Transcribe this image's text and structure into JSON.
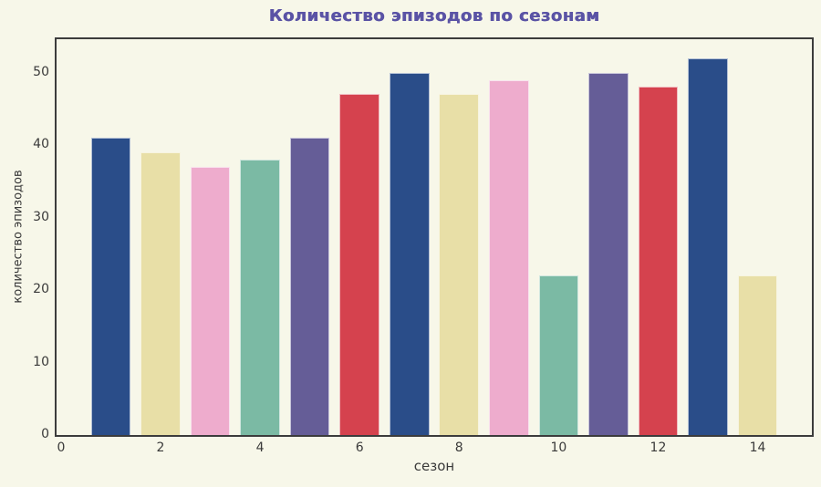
{
  "chart_data": {
    "type": "bar",
    "title": "Количество эпизодов по сезонам",
    "xlabel": "сезон",
    "ylabel": "количество эпизодов",
    "categories": [
      1,
      2,
      3,
      4,
      5,
      6,
      7,
      8,
      9,
      10,
      11,
      12,
      13,
      14
    ],
    "values": [
      41,
      39,
      37,
      38,
      41,
      47,
      50,
      47,
      49,
      22,
      50,
      48,
      52,
      22
    ],
    "palette": [
      "#2a4d89",
      "#e8dfa7",
      "#eeaccd",
      "#7bbaa4",
      "#655d97",
      "#d5424e"
    ],
    "x_ticks": [
      0,
      2,
      4,
      6,
      8,
      10,
      12,
      14
    ],
    "y_ticks": [
      0,
      10,
      20,
      30,
      40,
      50
    ],
    "xlim": [
      -0.09,
      15.09
    ],
    "ylim": [
      0,
      54.6
    ],
    "bar_width": 0.8,
    "grid": false,
    "legend": null
  },
  "style": {
    "figure_background": "#f7f7e9",
    "axes_background": "#f7f7e9",
    "spine_color": "#3c3c3c",
    "tick_label_color": "#3a3a3a",
    "title_color": "#5a53a5"
  }
}
